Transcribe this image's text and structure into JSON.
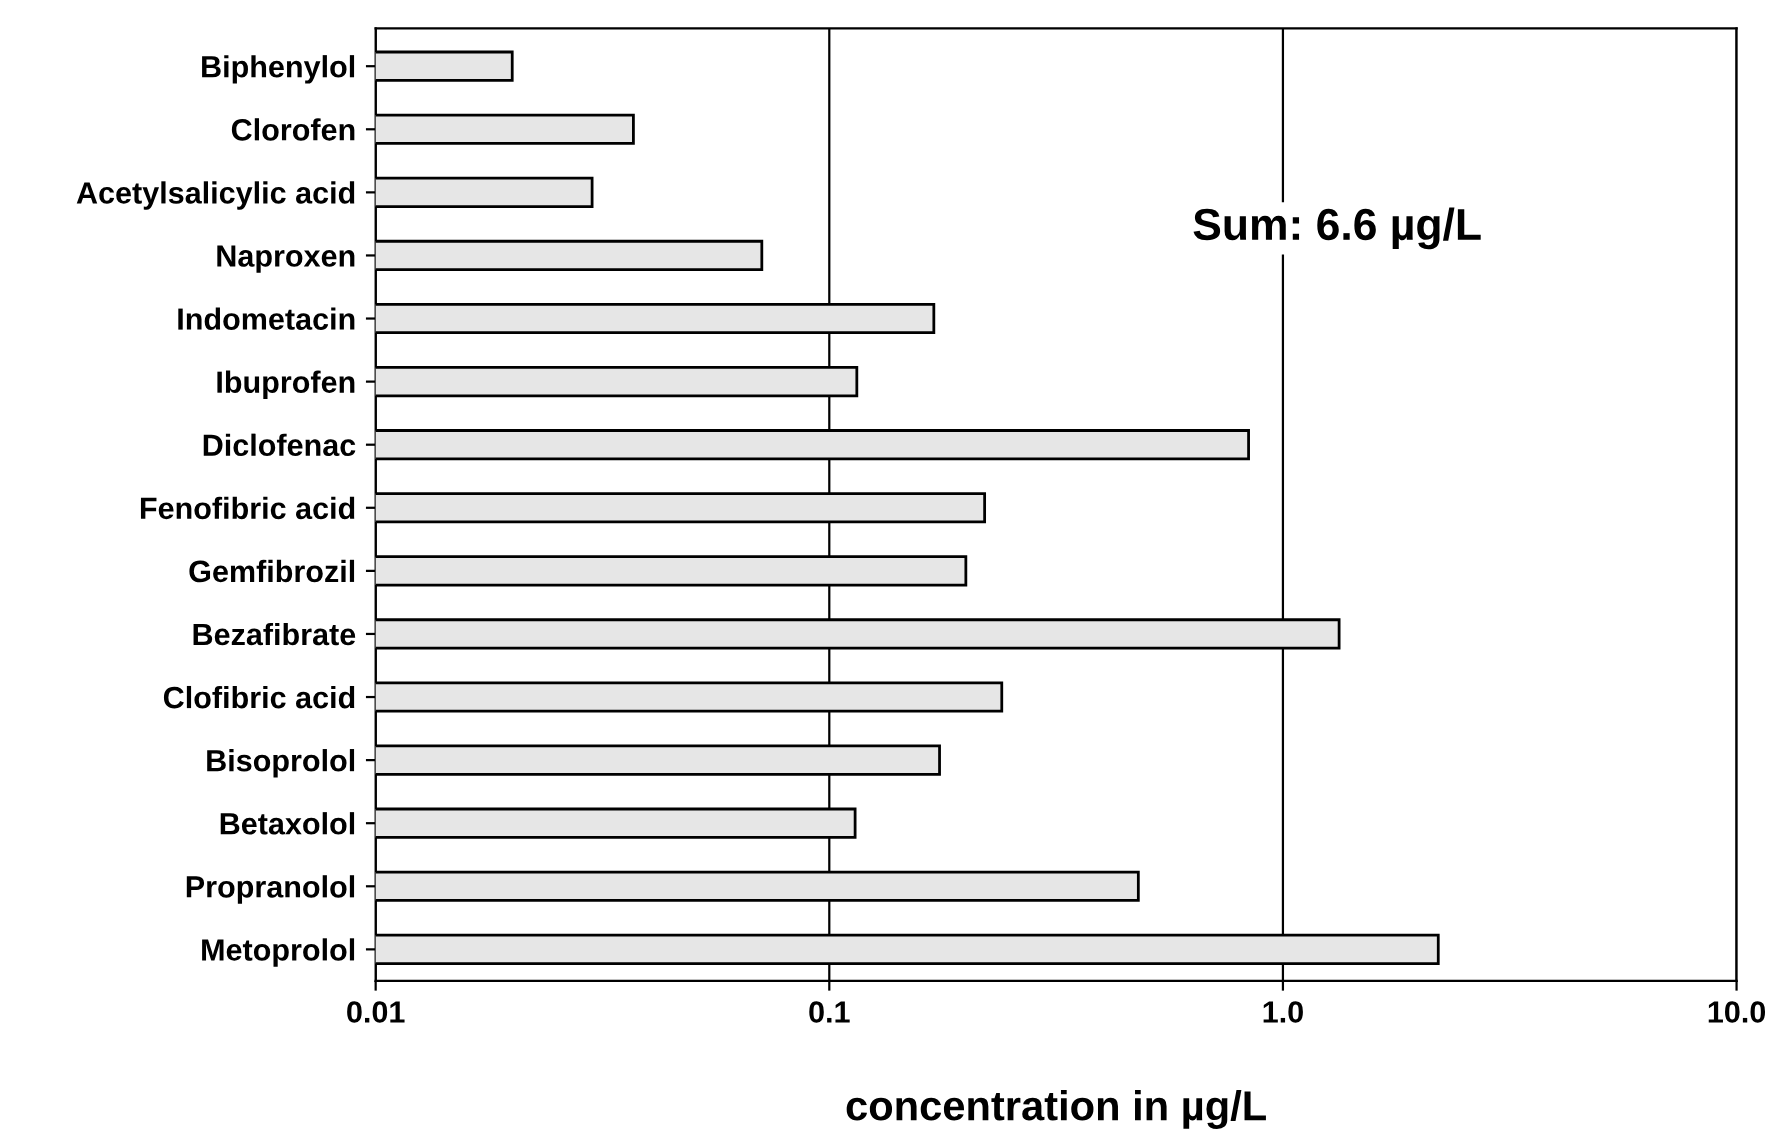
{
  "chart_data": {
    "type": "bar",
    "orientation": "horizontal",
    "xlabel": "concentration in µg/L",
    "categories": [
      "Biphenylol",
      "Clorofen",
      "Acetylsalicylic acid",
      "Naproxen",
      "Indometacin",
      "Ibuprofen",
      "Diclofenac",
      "Fenofibric acid",
      "Gemfibrozil",
      "Bezafibrate",
      "Clofibric acid",
      "Bisoprolol",
      "Betaxolol",
      "Propranolol",
      "Metoprolol"
    ],
    "values": [
      0.02,
      0.037,
      0.03,
      0.071,
      0.17,
      0.115,
      0.84,
      0.22,
      0.2,
      1.33,
      0.24,
      0.175,
      0.114,
      0.48,
      2.2
    ],
    "color": "#e6e6e6",
    "log": "x",
    "xlim": [
      0.01,
      10
    ],
    "xticks": [
      0.01,
      0.1,
      {
        "value": 1,
        "label": "1.0"
      },
      {
        "value": 10,
        "label": "10.0"
      }
    ],
    "grid": "x",
    "annotations": [
      "Sum: 6.6 µg/L"
    ]
  }
}
